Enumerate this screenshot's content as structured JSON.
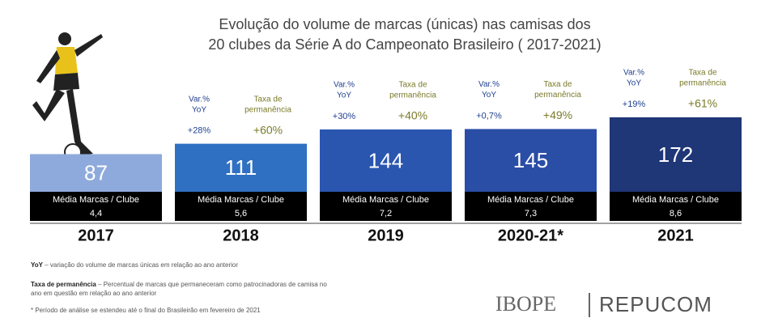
{
  "chart_data": {
    "type": "bar",
    "title": [
      "Evolução do volume de marcas (únicas) nas camisas dos",
      "20 clubes da Série A do Campeonato Brasileiro ( 2017-2021)"
    ],
    "categories": [
      "2017",
      "2018",
      "2019",
      "2020-21*",
      "2021"
    ],
    "values": [
      87,
      111,
      144,
      145,
      172
    ],
    "colors": [
      "#8eaadc",
      "#2f70c2",
      "#2a56b0",
      "#2a4ea6",
      "#1f3677"
    ],
    "strip_label": "Média Marcas / Clube",
    "strip_values": [
      4.4,
      5.6,
      7.2,
      7.3,
      8.6
    ],
    "strip_value_labels": [
      "4,4",
      "5,6",
      "7,2",
      "7,3",
      "8,6"
    ],
    "series": [
      {
        "name": "Var.% YoY",
        "name_lines": [
          "Var.%",
          "YoY"
        ],
        "color": "#1f3f8f",
        "values": [
          null,
          28,
          30,
          0.7,
          19
        ],
        "value_labels": [
          null,
          "+28%",
          "+30%",
          "+0,7%",
          "+19%"
        ]
      },
      {
        "name": "Taxa de permanência",
        "name_lines": [
          "Taxa de",
          "permanência"
        ],
        "color": "#7a7a2a",
        "values": [
          null,
          60,
          40,
          49,
          61
        ],
        "value_labels": [
          null,
          "+60%",
          "+40%",
          "+49%",
          "+61%"
        ]
      }
    ],
    "notes": [
      {
        "term": "YoY",
        "text": "– variação do volume de marcas únicas em relação ao ano anterior"
      },
      {
        "term": "Taxa de permanência",
        "text": "– Percentual de marcas que permaneceram como patrocinadoras de camisa no ano em questão em relação ao ano anterior"
      },
      {
        "text": "* Período de análise se estendeu até o final do Brasileirão em fevereiro de 2021"
      }
    ],
    "logo": [
      "IBOPE",
      "REPUCOM"
    ]
  }
}
